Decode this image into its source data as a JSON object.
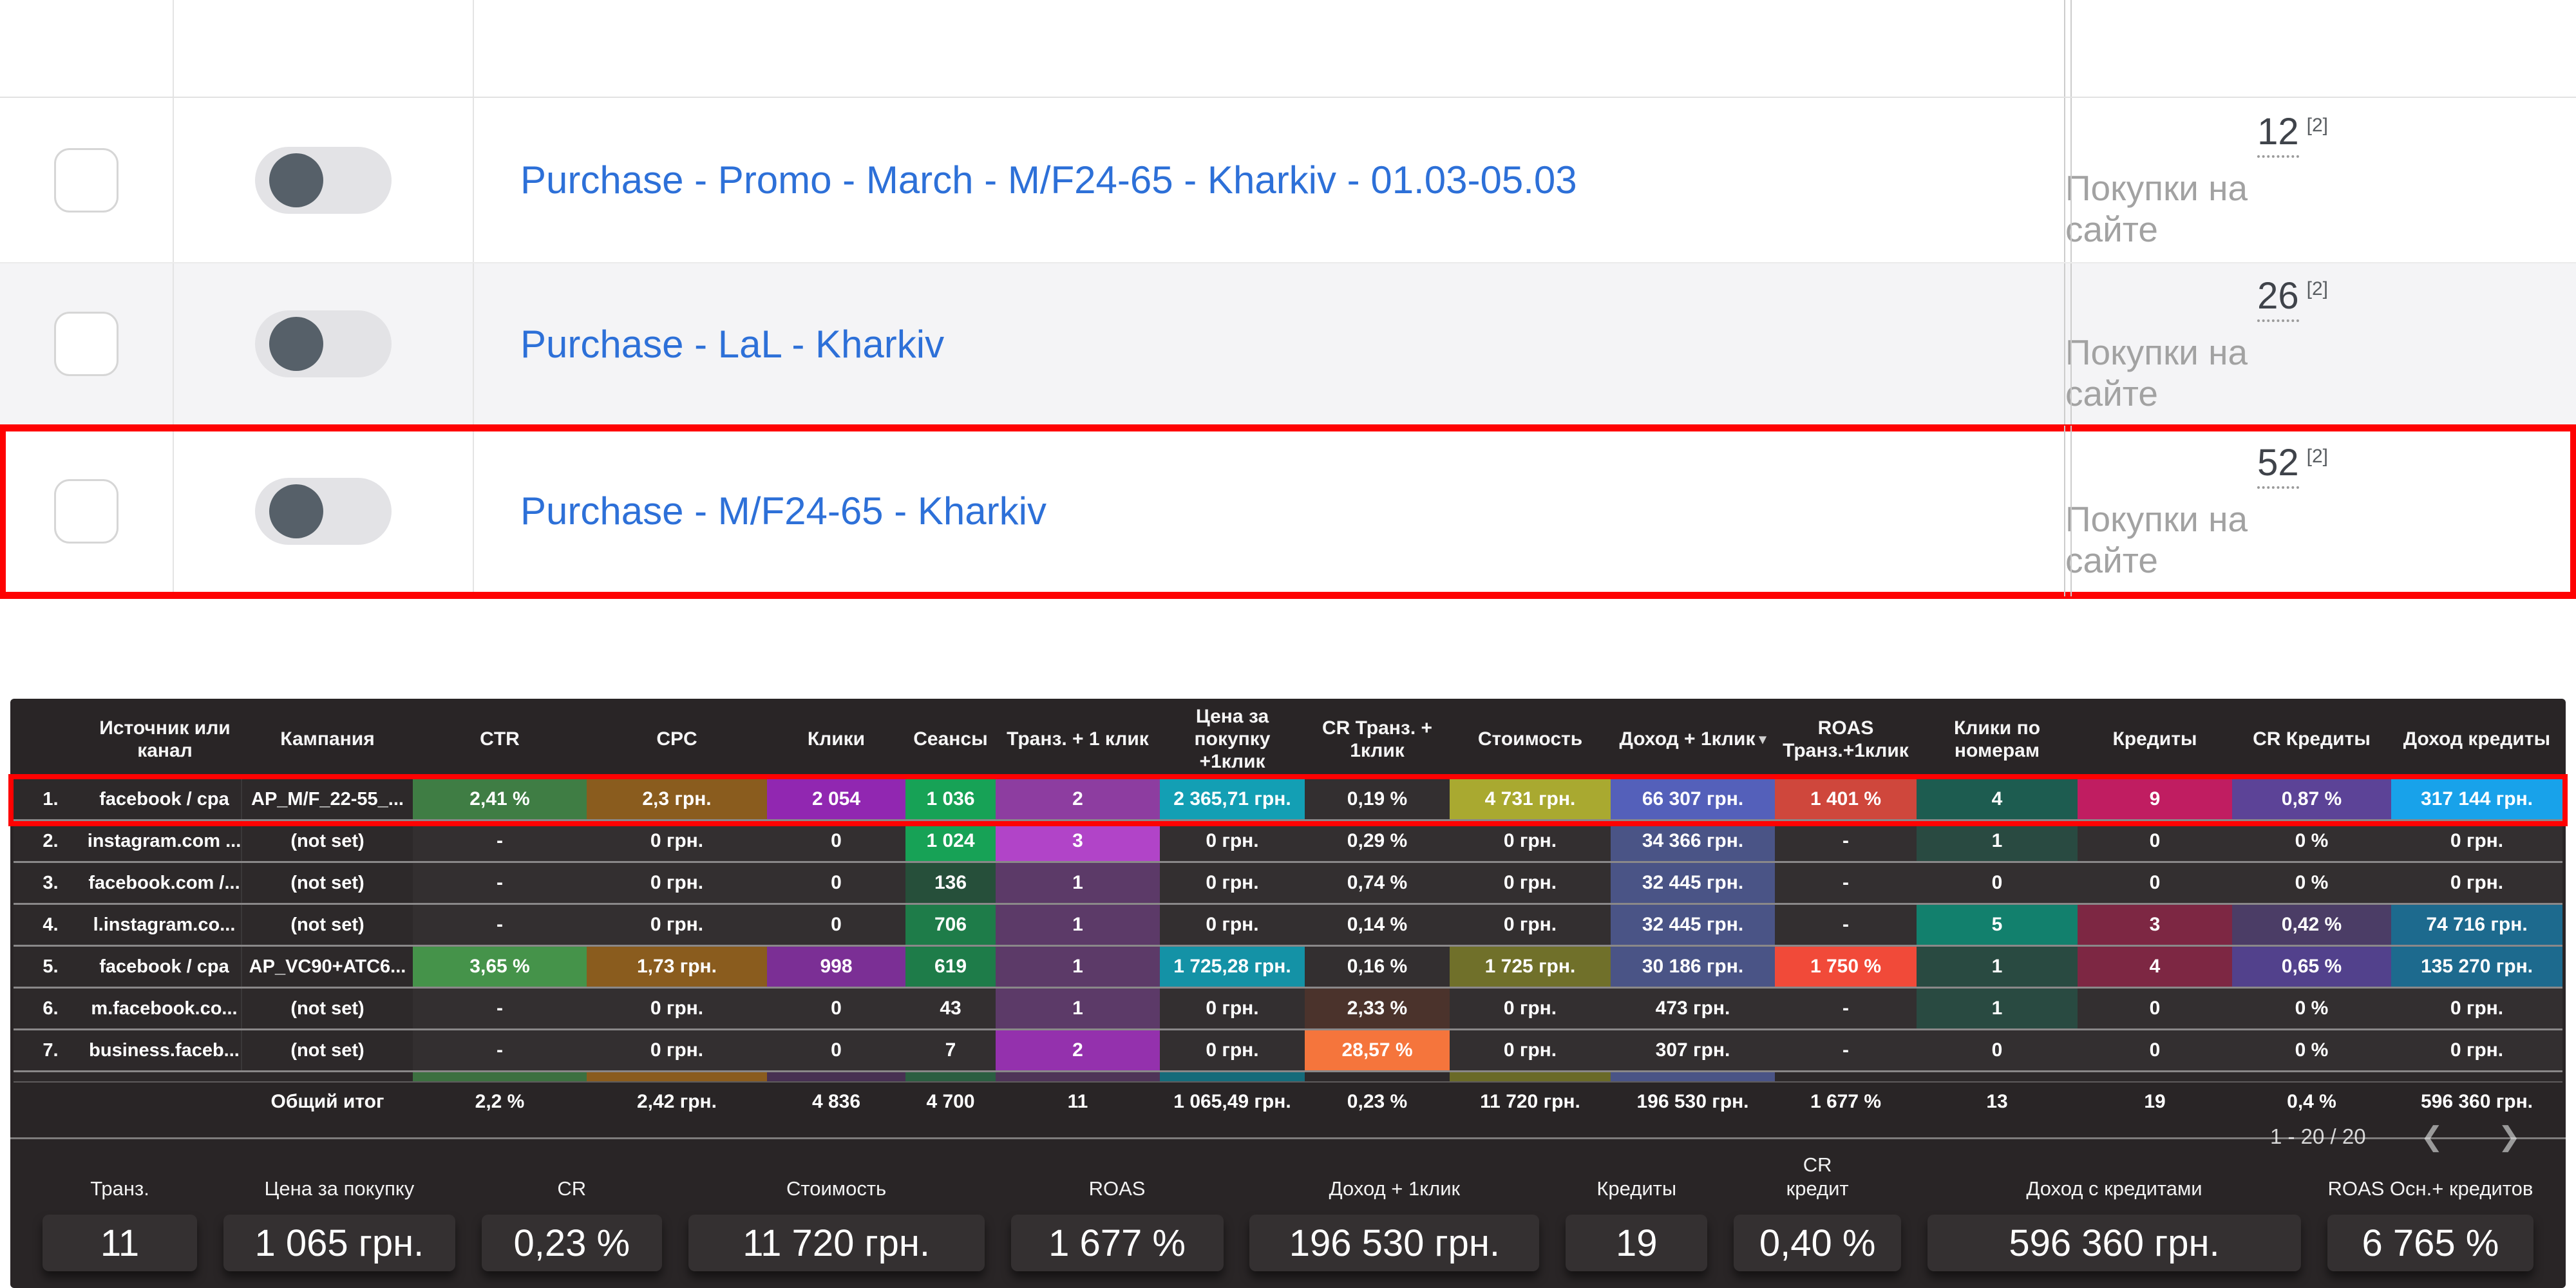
{
  "campaign_list": {
    "rows": [
      {
        "name": "Purchase - Promo - March - M/F24-65 - Kharkiv - 01.03-05.03",
        "count": "12",
        "footnote": "[2]",
        "metric": "Покупки на сайте",
        "highlighted": false,
        "zebra": false
      },
      {
        "name": "Purchase - LaL - Kharkiv",
        "count": "26",
        "footnote": "[2]",
        "metric": "Покупки на сайте",
        "highlighted": false,
        "zebra": true
      },
      {
        "name": "Purchase - M/F24-65 - Kharkiv",
        "count": "52",
        "footnote": "[2]",
        "metric": "Покупки на сайте",
        "highlighted": true,
        "zebra": false
      }
    ]
  },
  "table": {
    "headers": [
      "Источник или канал",
      "Кампания",
      "CTR",
      "CPC",
      "Клики",
      "Сеансы",
      "Транз. + 1 клик",
      "Цена за покупку +1клик",
      "CR Транз. + 1клик",
      "Стоимость",
      "Доход + 1клик",
      "ROAS Транз.+1клик",
      "Клики по номерам",
      "Кредиты",
      "CR Кредиты",
      "Доход кредиты"
    ],
    "sorted_header_index": 10,
    "sort_icon": "▾",
    "rows": [
      {
        "num": "1.",
        "source": "facebook / cpa",
        "campaign": "AP_M/F_22-55_...",
        "highlighted": true,
        "cells": [
          [
            "2,41 %",
            "#3f7d44"
          ],
          [
            "2,3 грн.",
            "#8a5c1e"
          ],
          [
            "2 054",
            "#9127b1"
          ],
          [
            "1 036",
            "#17a256"
          ],
          [
            "2",
            "#8d3da0"
          ],
          [
            "2 365,71 грн.",
            "#139fb4"
          ],
          [
            "0,19 %",
            ""
          ],
          [
            "4 731 грн.",
            "#a9a930"
          ],
          [
            "66 307 грн.",
            "#5460ba"
          ],
          [
            "1 401 %",
            "#cf473c"
          ],
          [
            "4",
            "#1d5c50"
          ],
          [
            "9",
            "#c01d61"
          ],
          [
            "0,87 %",
            "#5c4397"
          ],
          [
            "317 144 грн.",
            "#18a2ea"
          ]
        ]
      },
      {
        "num": "2.",
        "source": "instagram.com ...",
        "campaign": "(not set)",
        "highlighted": false,
        "cells": [
          [
            "-",
            ""
          ],
          [
            "0 грн.",
            ""
          ],
          [
            "0",
            ""
          ],
          [
            "1 024",
            "#17a256"
          ],
          [
            "3",
            "#b144c8"
          ],
          [
            "0 грн.",
            ""
          ],
          [
            "0,29 %",
            ""
          ],
          [
            "0 грн.",
            ""
          ],
          [
            "34 366 грн.",
            "#4a5486"
          ],
          [
            "-",
            ""
          ],
          [
            "1",
            "#294a41"
          ],
          [
            "0",
            ""
          ],
          [
            "0 %",
            ""
          ],
          [
            "0 грн.",
            ""
          ]
        ]
      },
      {
        "num": "3.",
        "source": "facebook.com /...",
        "campaign": "(not set)",
        "highlighted": false,
        "cells": [
          [
            "-",
            ""
          ],
          [
            "0 грн.",
            ""
          ],
          [
            "0",
            ""
          ],
          [
            "136",
            "#264f3a"
          ],
          [
            "1",
            "#5c3a68"
          ],
          [
            "0 грн.",
            ""
          ],
          [
            "0,74 %",
            ""
          ],
          [
            "0 грн.",
            ""
          ],
          [
            "32 445 грн.",
            "#4a5486"
          ],
          [
            "-",
            ""
          ],
          [
            "0",
            ""
          ],
          [
            "0",
            ""
          ],
          [
            "0 %",
            ""
          ],
          [
            "0 грн.",
            ""
          ]
        ]
      },
      {
        "num": "4.",
        "source": "l.instagram.co...",
        "campaign": "(not set)",
        "highlighted": false,
        "cells": [
          [
            "-",
            ""
          ],
          [
            "0 грн.",
            ""
          ],
          [
            "0",
            ""
          ],
          [
            "706",
            "#1e7c49"
          ],
          [
            "1",
            "#5c3a68"
          ],
          [
            "0 грн.",
            ""
          ],
          [
            "0,14 %",
            ""
          ],
          [
            "0 грн.",
            ""
          ],
          [
            "32 445 грн.",
            "#4a5486"
          ],
          [
            "-",
            ""
          ],
          [
            "5",
            "#12806d"
          ],
          [
            "3",
            "#7d2743"
          ],
          [
            "0,42 %",
            "#4b3d66"
          ],
          [
            "74 716 грн.",
            "#1d6a8e"
          ]
        ]
      },
      {
        "num": "5.",
        "source": "facebook / cpa",
        "campaign": "AP_VC90+ATC6...",
        "highlighted": false,
        "cells": [
          [
            "3,65 %",
            "#45934a"
          ],
          [
            "1,73 грн.",
            "#8a5c1e"
          ],
          [
            "998",
            "#7b2f95"
          ],
          [
            "619",
            "#1e7c49"
          ],
          [
            "1",
            "#5c3a68"
          ],
          [
            "1 725,28 грн.",
            "#1492a6"
          ],
          [
            "0,16 %",
            ""
          ],
          [
            "1 725 грн.",
            "#70702a"
          ],
          [
            "30 186 грн.",
            "#4a5486"
          ],
          [
            "1 750 %",
            "#f14a39"
          ],
          [
            "1",
            "#294a41"
          ],
          [
            "4",
            "#7d2743"
          ],
          [
            "0,65 %",
            "#52418c"
          ],
          [
            "135 270 грн.",
            "#1d6a8e"
          ]
        ]
      },
      {
        "num": "6.",
        "source": "m.facebook.co...",
        "campaign": "(not set)",
        "highlighted": false,
        "cells": [
          [
            "-",
            ""
          ],
          [
            "0 грн.",
            ""
          ],
          [
            "0",
            ""
          ],
          [
            "43",
            ""
          ],
          [
            "1",
            "#5c3a68"
          ],
          [
            "0 грн.",
            ""
          ],
          [
            "2,33 %",
            "#4b332c"
          ],
          [
            "0 грн.",
            ""
          ],
          [
            "473 грн.",
            ""
          ],
          [
            "-",
            ""
          ],
          [
            "1",
            "#294a41"
          ],
          [
            "0",
            ""
          ],
          [
            "0 %",
            ""
          ],
          [
            "0 грн.",
            ""
          ]
        ]
      },
      {
        "num": "7.",
        "source": "business.faceb...",
        "campaign": "(not set)",
        "highlighted": false,
        "cells": [
          [
            "-",
            ""
          ],
          [
            "0 грн.",
            ""
          ],
          [
            "0",
            ""
          ],
          [
            "7",
            ""
          ],
          [
            "2",
            "#9431ad"
          ],
          [
            "0 грн.",
            ""
          ],
          [
            "28,57 %",
            "#f5753c"
          ],
          [
            "0 грн.",
            ""
          ],
          [
            "307 грн.",
            ""
          ],
          [
            "-",
            ""
          ],
          [
            "0",
            ""
          ],
          [
            "0",
            ""
          ],
          [
            "0 %",
            ""
          ],
          [
            "0 грн.",
            ""
          ]
        ]
      }
    ],
    "partial_row_colors": [
      "#3c7040",
      "#8a5c1e",
      "#473052",
      "#2b5e41",
      "#4e3457",
      "#156b7a",
      "",
      "#6a6a28",
      "#4a5486",
      "",
      "",
      "",
      "",
      ""
    ],
    "total": {
      "label": "Общий итог",
      "cells": [
        "2,2 %",
        "2,42 грн.",
        "4 836",
        "4 700",
        "11",
        "1 065,49 грн.",
        "0,23 %",
        "11 720 грн.",
        "196 530 грн.",
        "1 677 %",
        "13",
        "19",
        "0,4 %",
        "596 360 грн."
      ]
    },
    "pagination": {
      "range": "1 - 20 / 20",
      "prev": "❮",
      "next": "❯"
    }
  },
  "summary": {
    "metrics": [
      {
        "label": "Транз.",
        "value": "11"
      },
      {
        "label": "Цена за покупку",
        "value": "1 065 грн."
      },
      {
        "label": "CR",
        "value": "0,23 %"
      },
      {
        "label": "Стоимость",
        "value": "11 720 грн."
      },
      {
        "label": "ROAS",
        "value": "1 677 %"
      },
      {
        "label": "Доход + 1клик",
        "value": "196 530 грн."
      },
      {
        "label": "Кредиты",
        "value": "19"
      },
      {
        "label": "CR кредит",
        "value": "0,40 %"
      },
      {
        "label": "Доход с кредитами",
        "value": "596 360 грн."
      },
      {
        "label": "ROAS Осн.+ кредитов",
        "value": "6 765 %"
      }
    ]
  },
  "colors": {
    "accent_red": "#fe0202",
    "link_blue": "#2d70d8",
    "muted_text": "#a2a2a2",
    "dark_bg": "#292526",
    "cell_default": "#332f30"
  }
}
